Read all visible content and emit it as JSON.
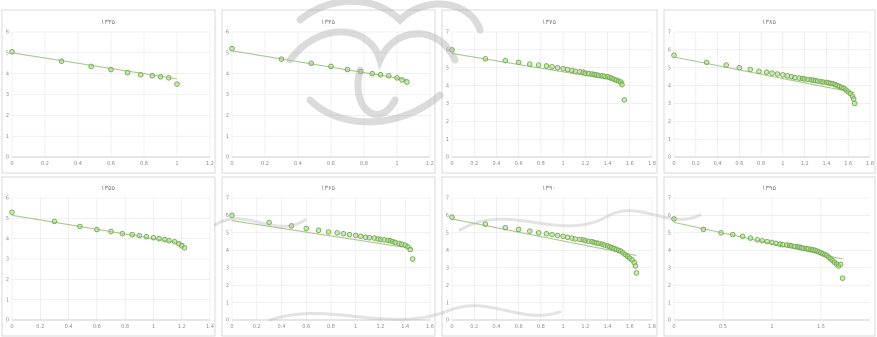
{
  "colors": {
    "marker_fill": "#a9d08e",
    "marker_stroke": "#70ad47",
    "trendline": "#a9c98f",
    "grid": "#e6e6e6",
    "watermark": "#b0b0b0"
  },
  "chart_data": [
    {
      "type": "scatter",
      "title": "۱۳۳۵",
      "xlabel": "",
      "ylabel": "",
      "xlim": [
        0,
        1.2
      ],
      "ylim": [
        0,
        6
      ],
      "xticks": [
        "0",
        "0.2",
        "0.4",
        "0.6",
        "0.8",
        "1",
        "1.2"
      ],
      "yticks": [
        "0",
        "1",
        "2",
        "3",
        "4",
        "5",
        "6"
      ],
      "x": [
        0,
        0.3,
        0.48,
        0.6,
        0.7,
        0.78,
        0.85,
        0.9,
        0.95,
        1.0
      ],
      "y": [
        5.05,
        4.6,
        4.35,
        4.2,
        4.05,
        3.95,
        3.9,
        3.85,
        3.8,
        3.5
      ],
      "trend": [
        [
          0,
          5.0
        ],
        [
          1.0,
          3.75
        ]
      ]
    },
    {
      "type": "scatter",
      "title": "۱۳۴۵",
      "xlabel": "",
      "ylabel": "",
      "xlim": [
        0,
        1.2
      ],
      "ylim": [
        0,
        6
      ],
      "xticks": [
        "0",
        "0.2",
        "0.4",
        "0.6",
        "0.8",
        "1",
        "1.2"
      ],
      "yticks": [
        "0",
        "1",
        "2",
        "3",
        "4",
        "5",
        "6"
      ],
      "x": [
        0,
        0.3,
        0.48,
        0.6,
        0.7,
        0.78,
        0.85,
        0.9,
        0.95,
        1.0,
        1.03,
        1.06
      ],
      "y": [
        5.2,
        4.7,
        4.5,
        4.35,
        4.2,
        4.1,
        4.0,
        3.95,
        3.9,
        3.8,
        3.7,
        3.6
      ],
      "trend": [
        [
          0,
          5.1
        ],
        [
          1.07,
          3.7
        ]
      ]
    },
    {
      "type": "scatter",
      "title": "۱۳۷۵",
      "xlabel": "",
      "ylabel": "",
      "xlim": [
        0,
        1.8
      ],
      "ylim": [
        0,
        7
      ],
      "xticks": [
        "0",
        "0.2",
        "0.4",
        "0.6",
        "0.8",
        "1",
        "1.2",
        "1.4",
        "1.6",
        "1.8"
      ],
      "yticks": [
        "0",
        "1",
        "2",
        "3",
        "4",
        "5",
        "6",
        "7"
      ],
      "x": [
        0,
        0.3,
        0.48,
        0.6,
        0.7,
        0.78,
        0.85,
        0.9,
        0.95,
        1.0,
        1.04,
        1.08,
        1.11,
        1.15,
        1.18,
        1.2,
        1.23,
        1.26,
        1.28,
        1.3,
        1.32,
        1.35,
        1.37,
        1.4,
        1.42,
        1.44,
        1.46,
        1.48,
        1.5,
        1.52,
        1.53,
        1.55
      ],
      "y": [
        6.0,
        5.5,
        5.4,
        5.3,
        5.2,
        5.15,
        5.1,
        5.05,
        5.0,
        4.95,
        4.9,
        4.85,
        4.8,
        4.78,
        4.75,
        4.7,
        4.68,
        4.65,
        4.62,
        4.6,
        4.57,
        4.55,
        4.52,
        4.5,
        4.45,
        4.4,
        4.35,
        4.3,
        4.25,
        4.2,
        4.05,
        3.2
      ],
      "trend": [
        [
          0,
          5.8
        ],
        [
          1.55,
          4.2
        ]
      ]
    },
    {
      "type": "scatter",
      "title": "۱۳۸۵",
      "xlabel": "",
      "ylabel": "",
      "xlim": [
        0,
        1.8
      ],
      "ylim": [
        0,
        7
      ],
      "xticks": [
        "0",
        "0.2",
        "0.4",
        "0.6",
        "0.8",
        "1",
        "1.2",
        "1.4",
        "1.6",
        "1.8"
      ],
      "yticks": [
        "0",
        "1",
        "2",
        "3",
        "4",
        "5",
        "6",
        "7"
      ],
      "x": [
        0,
        0.3,
        0.48,
        0.6,
        0.7,
        0.78,
        0.85,
        0.9,
        0.95,
        1.0,
        1.04,
        1.08,
        1.11,
        1.15,
        1.18,
        1.2,
        1.23,
        1.26,
        1.28,
        1.3,
        1.32,
        1.35,
        1.37,
        1.4,
        1.42,
        1.44,
        1.46,
        1.48,
        1.5,
        1.52,
        1.54,
        1.56,
        1.58,
        1.6,
        1.62,
        1.64,
        1.65,
        1.66
      ],
      "y": [
        5.7,
        5.3,
        5.15,
        5.0,
        4.9,
        4.8,
        4.75,
        4.7,
        4.65,
        4.6,
        4.55,
        4.5,
        4.45,
        4.42,
        4.4,
        4.37,
        4.35,
        4.32,
        4.3,
        4.28,
        4.25,
        4.22,
        4.2,
        4.18,
        4.15,
        4.12,
        4.1,
        4.05,
        4.0,
        3.95,
        3.9,
        3.85,
        3.75,
        3.65,
        3.55,
        3.4,
        3.25,
        3.0
      ],
      "trend": [
        [
          0,
          5.6
        ],
        [
          1.66,
          3.6
        ]
      ]
    },
    {
      "type": "scatter",
      "title": "۱۳۵۵",
      "xlabel": "",
      "ylabel": "",
      "xlim": [
        0,
        1.4
      ],
      "ylim": [
        0,
        6
      ],
      "xticks": [
        "0",
        "0.2",
        "0.4",
        "0.6",
        "0.8",
        "1",
        "1.2",
        "1.4"
      ],
      "yticks": [
        "0",
        "1",
        "2",
        "3",
        "4",
        "5",
        "6"
      ],
      "x": [
        0,
        0.3,
        0.48,
        0.6,
        0.7,
        0.78,
        0.85,
        0.9,
        0.95,
        1.0,
        1.04,
        1.08,
        1.11,
        1.15,
        1.18,
        1.2,
        1.22
      ],
      "y": [
        5.3,
        4.85,
        4.6,
        4.45,
        4.35,
        4.25,
        4.2,
        4.15,
        4.1,
        4.05,
        4.0,
        3.95,
        3.9,
        3.85,
        3.75,
        3.65,
        3.55
      ],
      "trend": [
        [
          0,
          5.15
        ],
        [
          1.22,
          3.75
        ]
      ]
    },
    {
      "type": "scatter",
      "title": "۱۳۶۵",
      "xlabel": "",
      "ylabel": "",
      "xlim": [
        0,
        1.6
      ],
      "ylim": [
        0,
        7
      ],
      "xticks": [
        "0",
        "0.2",
        "0.4",
        "0.6",
        "0.8",
        "1",
        "1.2",
        "1.4",
        "1.6"
      ],
      "yticks": [
        "0",
        "1",
        "2",
        "3",
        "4",
        "5",
        "6",
        "7"
      ],
      "x": [
        0,
        0.3,
        0.48,
        0.6,
        0.7,
        0.78,
        0.85,
        0.9,
        0.95,
        1.0,
        1.04,
        1.08,
        1.11,
        1.15,
        1.18,
        1.2,
        1.23,
        1.26,
        1.28,
        1.3,
        1.32,
        1.35,
        1.37,
        1.4,
        1.42,
        1.44,
        1.46
      ],
      "y": [
        6.0,
        5.6,
        5.4,
        5.25,
        5.15,
        5.05,
        5.0,
        4.95,
        4.9,
        4.85,
        4.8,
        4.75,
        4.72,
        4.7,
        4.65,
        4.62,
        4.6,
        4.57,
        4.55,
        4.5,
        4.45,
        4.4,
        4.35,
        4.3,
        4.2,
        4.05,
        3.5
      ],
      "trend": [
        [
          0,
          5.7
        ],
        [
          1.46,
          4.1
        ]
      ]
    },
    {
      "type": "scatter",
      "title": "۱۳۹۰",
      "xlabel": "",
      "ylabel": "",
      "xlim": [
        0,
        1.8
      ],
      "ylim": [
        0,
        7
      ],
      "xticks": [
        "0",
        "0.2",
        "0.4",
        "0.6",
        "0.8",
        "1",
        "1.2",
        "1.4",
        "1.6",
        "1.8"
      ],
      "yticks": [
        "0",
        "1",
        "2",
        "3",
        "4",
        "5",
        "6",
        "7"
      ],
      "x": [
        0,
        0.3,
        0.48,
        0.6,
        0.7,
        0.78,
        0.85,
        0.9,
        0.95,
        1.0,
        1.04,
        1.08,
        1.11,
        1.15,
        1.18,
        1.2,
        1.23,
        1.26,
        1.28,
        1.3,
        1.32,
        1.35,
        1.37,
        1.4,
        1.42,
        1.44,
        1.46,
        1.48,
        1.5,
        1.52,
        1.54,
        1.56,
        1.58,
        1.6,
        1.62,
        1.64,
        1.65,
        1.66
      ],
      "y": [
        5.9,
        5.5,
        5.3,
        5.2,
        5.1,
        5.0,
        4.95,
        4.9,
        4.85,
        4.8,
        4.75,
        4.7,
        4.65,
        4.62,
        4.6,
        4.55,
        4.52,
        4.5,
        4.45,
        4.42,
        4.4,
        4.35,
        4.3,
        4.25,
        4.2,
        4.15,
        4.1,
        4.05,
        4.0,
        3.95,
        3.85,
        3.75,
        3.65,
        3.55,
        3.45,
        3.3,
        3.1,
        2.7
      ],
      "trend": [
        [
          0,
          5.8
        ],
        [
          1.66,
          3.7
        ]
      ]
    },
    {
      "type": "scatter",
      "title": "۱۳۹۵",
      "xlabel": "",
      "ylabel": "",
      "xlim": [
        0,
        2
      ],
      "ylim": [
        0,
        7
      ],
      "xticks": [
        "0",
        "0.5",
        "1",
        "1.5"
      ],
      "yticks": [
        "0",
        "1",
        "2",
        "3",
        "4",
        "5",
        "6",
        "7"
      ],
      "x": [
        0,
        0.3,
        0.48,
        0.6,
        0.7,
        0.78,
        0.85,
        0.9,
        0.95,
        1.0,
        1.04,
        1.08,
        1.11,
        1.15,
        1.18,
        1.2,
        1.23,
        1.26,
        1.28,
        1.3,
        1.32,
        1.35,
        1.37,
        1.4,
        1.42,
        1.44,
        1.46,
        1.48,
        1.5,
        1.52,
        1.54,
        1.56,
        1.58,
        1.6,
        1.62,
        1.64,
        1.66,
        1.68,
        1.7,
        1.72
      ],
      "y": [
        5.8,
        5.2,
        5.0,
        4.9,
        4.8,
        4.7,
        4.6,
        4.55,
        4.5,
        4.45,
        4.4,
        4.35,
        4.32,
        4.3,
        4.28,
        4.25,
        4.22,
        4.2,
        4.18,
        4.15,
        4.12,
        4.1,
        4.08,
        4.05,
        4.02,
        4.0,
        3.95,
        3.9,
        3.85,
        3.8,
        3.75,
        3.7,
        3.6,
        3.5,
        3.4,
        3.3,
        3.2,
        3.1,
        3.2,
        2.4
      ],
      "trend": [
        [
          0,
          5.6
        ],
        [
          1.72,
          3.5
        ]
      ]
    }
  ]
}
